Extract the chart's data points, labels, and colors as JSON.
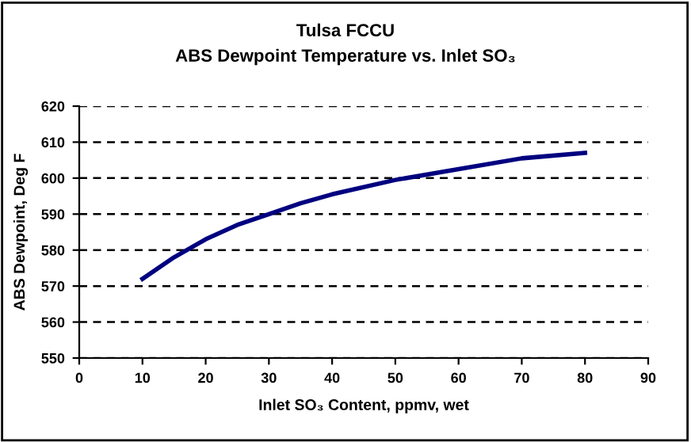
{
  "chart_data": {
    "type": "line",
    "title": "Tulsa FCCU",
    "subtitle": "ABS Dewpoint Temperature vs. Inlet SO₃",
    "xlabel": "Inlet SO₃ Content, ppmv, wet",
    "ylabel": "ABS Dewpoint, Deg F",
    "x": [
      10,
      15,
      20,
      25,
      30,
      35,
      40,
      50,
      60,
      70,
      80
    ],
    "series": [
      {
        "color": "#000080",
        "values": [
          572,
          578,
          583,
          587,
          590,
          593,
          595.5,
          599.5,
          602.5,
          605.5,
          607
        ]
      }
    ],
    "xlim": [
      0,
      90
    ],
    "xticks": [
      0,
      10,
      20,
      30,
      40,
      50,
      60,
      70,
      80,
      90
    ],
    "ylim": [
      550,
      620
    ],
    "yticks": [
      550,
      560,
      570,
      580,
      590,
      600,
      610,
      620
    ],
    "grid": "y",
    "marker": "none",
    "line_style": "solid",
    "legend": false
  }
}
